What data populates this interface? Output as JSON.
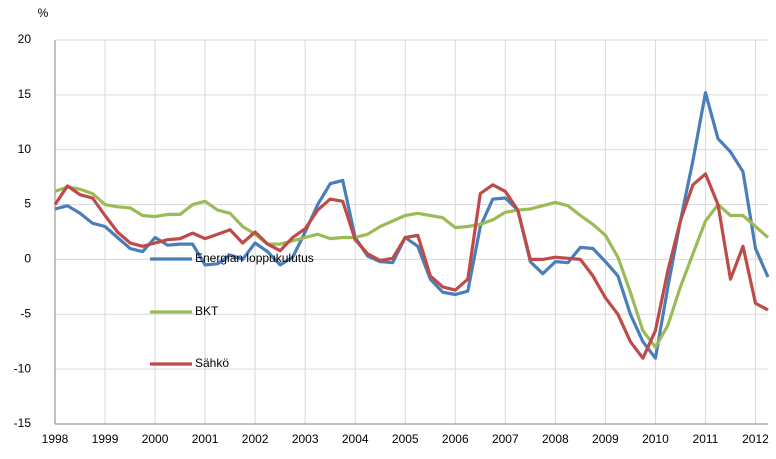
{
  "chart_data": {
    "type": "line",
    "y_label": "%",
    "x": [
      1998,
      1998.25,
      1998.5,
      1998.75,
      1999,
      1999.25,
      1999.5,
      1999.75,
      2000,
      2000.25,
      2000.5,
      2000.75,
      2001,
      2001.25,
      2001.5,
      2001.75,
      2002,
      2002.25,
      2002.5,
      2002.75,
      2003,
      2003.25,
      2003.5,
      2003.75,
      2004,
      2004.25,
      2004.5,
      2004.75,
      2005,
      2005.25,
      2005.5,
      2005.75,
      2006,
      2006.25,
      2006.5,
      2006.75,
      2007,
      2007.25,
      2007.5,
      2007.75,
      2008,
      2008.25,
      2008.5,
      2008.75,
      2009,
      2009.25,
      2009.5,
      2009.75,
      2010,
      2010.25,
      2010.5,
      2010.75,
      2011,
      2011.25,
      2011.5,
      2011.75,
      2012,
      2012.25
    ],
    "series": [
      {
        "name": "Energian loppukulutus",
        "color": "#4a7ebb",
        "values": [
          4.6,
          4.9,
          4.2,
          3.3,
          3.0,
          2.0,
          1.0,
          0.7,
          2.0,
          1.3,
          1.4,
          1.4,
          -0.5,
          -0.4,
          0.4,
          0.0,
          1.5,
          0.7,
          -0.5,
          0.2,
          2.5,
          5.0,
          6.9,
          7.2,
          2.0,
          0.3,
          -0.2,
          -0.3,
          2.0,
          1.2,
          -1.8,
          -3.0,
          -3.2,
          -2.9,
          3.0,
          5.5,
          5.6,
          4.5,
          -0.2,
          -1.3,
          -0.2,
          -0.3,
          1.1,
          1.0,
          -0.2,
          -1.5,
          -5.0,
          -7.5,
          -9.0,
          -2.5,
          3.5,
          9.0,
          15.2,
          11.0,
          9.8,
          8.0,
          1.0,
          -1.6
        ]
      },
      {
        "name": "BKT",
        "color": "#9bbb59",
        "values": [
          6.2,
          6.6,
          6.4,
          6.0,
          5.0,
          4.8,
          4.7,
          4.0,
          3.9,
          4.1,
          4.1,
          5.0,
          5.3,
          4.5,
          4.2,
          3.0,
          2.3,
          1.4,
          1.4,
          1.7,
          2.0,
          2.3,
          1.9,
          2.0,
          2.0,
          2.3,
          3.0,
          3.5,
          4.0,
          4.2,
          4.0,
          3.8,
          2.9,
          3.0,
          3.2,
          3.6,
          4.3,
          4.5,
          4.6,
          4.9,
          5.2,
          4.9,
          4.0,
          3.2,
          2.2,
          0.2,
          -3.0,
          -6.5,
          -8.0,
          -6.0,
          -2.5,
          0.5,
          3.5,
          5.0,
          4.0,
          4.0,
          3.0,
          2.0
        ]
      },
      {
        "name": "Sähkö",
        "color": "#be4b48",
        "values": [
          5.0,
          6.7,
          5.9,
          5.6,
          4.0,
          2.5,
          1.5,
          1.2,
          1.5,
          1.8,
          1.9,
          2.4,
          1.9,
          2.3,
          2.7,
          1.5,
          2.5,
          1.4,
          0.8,
          2.0,
          2.8,
          4.5,
          5.5,
          5.3,
          1.8,
          0.5,
          -0.1,
          0.1,
          2.0,
          2.2,
          -1.5,
          -2.5,
          -2.8,
          -1.8,
          6.0,
          6.8,
          6.2,
          4.5,
          0.0,
          0.0,
          0.2,
          0.1,
          0.0,
          -1.5,
          -3.5,
          -5.0,
          -7.5,
          -9.0,
          -6.5,
          -1.0,
          3.5,
          6.8,
          7.8,
          5.0,
          -1.8,
          1.2,
          -4.0,
          -4.6
        ]
      }
    ],
    "xlim": [
      1998,
      2012.25
    ],
    "xticks": [
      1998,
      1999,
      2000,
      2001,
      2002,
      2003,
      2004,
      2005,
      2006,
      2007,
      2008,
      2009,
      2010,
      2011,
      2012
    ],
    "ylim": [
      -15,
      20
    ],
    "yticks": [
      -15,
      -10,
      -5,
      0,
      5,
      10,
      15,
      20
    ],
    "grid": true
  }
}
